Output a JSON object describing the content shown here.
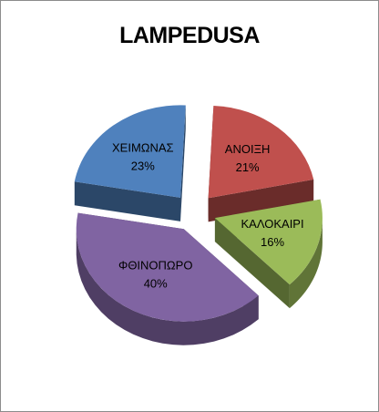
{
  "chart_data": {
    "type": "pie",
    "title": "LAMPEDUSA",
    "categories": [
      "ΧΕΙΜΩΝΑΣ",
      "ΑΝΟΙΞΗ",
      "ΚΑΛΟΚΑΙΡΙ",
      "ΦΘΙΝΟΠΩΡΟ"
    ],
    "values": [
      23,
      21,
      16,
      40
    ],
    "value_labels": [
      "23%",
      "21%",
      "16%",
      "40%"
    ],
    "colors": [
      "#4f81bd",
      "#c0504d",
      "#9bbb59",
      "#8064a2"
    ],
    "exploded": true,
    "legend": "none"
  }
}
